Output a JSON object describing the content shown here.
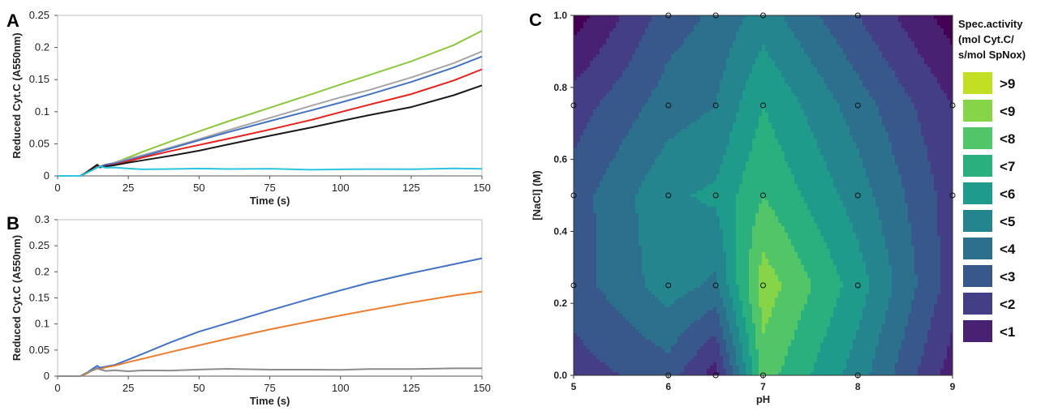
{
  "chart_data": [
    {
      "panel": "A",
      "type": "line",
      "xlabel": "Time (s)",
      "ylabel": "Reduced Cyt.C (A550nm)",
      "xlim": [
        0,
        150
      ],
      "ylim": [
        0,
        0.25
      ],
      "xticks": [
        "0",
        "25",
        "50",
        "75",
        "100",
        "125",
        "150"
      ],
      "yticks": [
        "0",
        "0.05",
        "0.1",
        "0.15",
        "0.2",
        "0.25"
      ],
      "x": [
        0,
        3,
        8,
        10,
        12,
        14,
        15,
        17,
        20,
        25,
        30,
        40,
        50,
        60,
        75,
        90,
        100,
        110,
        125,
        140,
        150
      ],
      "series": [
        {
          "color": "#8dc63f",
          "values": [
            0,
            0,
            0,
            0.004,
            0.011,
            0.017,
            0.014,
            0.018,
            0.021,
            0.029,
            0.037,
            0.053,
            0.069,
            0.085,
            0.107,
            0.128,
            0.142,
            0.156,
            0.178,
            0.204,
            0.226
          ]
        },
        {
          "color": "#a6a6a6",
          "values": [
            0,
            0,
            0,
            0.004,
            0.011,
            0.016,
            0.014,
            0.017,
            0.02,
            0.026,
            0.032,
            0.045,
            0.058,
            0.071,
            0.09,
            0.109,
            0.122,
            0.134,
            0.154,
            0.176,
            0.194
          ]
        },
        {
          "color": "#4472c4",
          "values": [
            0,
            0,
            0,
            0.004,
            0.01,
            0.016,
            0.014,
            0.017,
            0.019,
            0.025,
            0.031,
            0.043,
            0.055,
            0.067,
            0.085,
            0.103,
            0.115,
            0.127,
            0.146,
            0.168,
            0.186
          ]
        },
        {
          "color": "#e8211d",
          "values": [
            0,
            0,
            0,
            0.004,
            0.01,
            0.016,
            0.013,
            0.016,
            0.018,
            0.023,
            0.028,
            0.038,
            0.048,
            0.058,
            0.073,
            0.088,
            0.099,
            0.11,
            0.127,
            0.149,
            0.166
          ]
        },
        {
          "color": "#1a1a1a",
          "values": [
            0,
            0,
            0,
            0.005,
            0.011,
            0.018,
            0.014,
            0.015,
            0.016,
            0.02,
            0.024,
            0.032,
            0.04,
            0.049,
            0.062,
            0.075,
            0.085,
            0.095,
            0.108,
            0.126,
            0.141
          ]
        },
        {
          "color": "#2cc4e0",
          "values": [
            0,
            0,
            0,
            0.004,
            0.009,
            0.013,
            0.014,
            0.012,
            0.013,
            0.012,
            0.011,
            0.011,
            0.011,
            0.01,
            0.011,
            0.01,
            0.011,
            0.011,
            0.01,
            0.011,
            0.011
          ]
        }
      ]
    },
    {
      "panel": "B",
      "type": "line",
      "xlabel": "Time (s)",
      "ylabel": "Reduced Cyt.C (A550nm)",
      "xlim": [
        0,
        150
      ],
      "ylim": [
        0,
        0.3
      ],
      "xticks": [
        "0",
        "25",
        "50",
        "75",
        "100",
        "125",
        "150"
      ],
      "yticks": [
        "0",
        "0.05",
        "0.1",
        "0.15",
        "0.2",
        "0.25",
        "0.3"
      ],
      "x": [
        0,
        3,
        8,
        10,
        12,
        14,
        15,
        17,
        20,
        25,
        30,
        40,
        50,
        60,
        75,
        90,
        100,
        110,
        125,
        140,
        150
      ],
      "series": [
        {
          "color": "#4472c4",
          "values": [
            0,
            0,
            0,
            0.005,
            0.012,
            0.019,
            0.016,
            0.019,
            0.022,
            0.032,
            0.042,
            0.064,
            0.085,
            0.102,
            0.127,
            0.15,
            0.164,
            0.178,
            0.197,
            0.215,
            0.226
          ]
        },
        {
          "color": "#ed7d31",
          "values": [
            0,
            0,
            0,
            0.004,
            0.01,
            0.015,
            0.014,
            0.017,
            0.019,
            0.026,
            0.033,
            0.047,
            0.06,
            0.072,
            0.089,
            0.105,
            0.116,
            0.127,
            0.142,
            0.155,
            0.162
          ]
        },
        {
          "color": "#8c8c8c",
          "values": [
            0,
            0,
            0,
            0.006,
            0.011,
            0.016,
            0.012,
            0.009,
            0.011,
            0.01,
            0.012,
            0.011,
            0.012,
            0.013,
            0.012,
            0.013,
            0.013,
            0.014,
            0.013,
            0.014,
            0.015
          ]
        }
      ]
    },
    {
      "panel": "C",
      "type": "heatmap",
      "xlabel": "pH",
      "ylabel": "[NaCl] (M)",
      "xlim": [
        5,
        9
      ],
      "ylim": [
        0,
        1
      ],
      "xticks": [
        "5",
        "6",
        "7",
        "8",
        "9"
      ],
      "yticks": [
        "0.0",
        "0.2",
        "0.4",
        "0.6",
        "0.8",
        "1.0"
      ],
      "x": [
        5,
        6,
        6.5,
        7,
        8,
        9
      ],
      "y": [
        0,
        0.25,
        0.5,
        0.75,
        1.0
      ],
      "z": [
        [
          2.5,
          3.5,
          1.5,
          8.5,
          5.5,
          1.5
        ],
        [
          3.5,
          5.5,
          4.8,
          9.6,
          6.5,
          2.5
        ],
        [
          3.5,
          5.8,
          6.2,
          8.0,
          5.5,
          2.5
        ],
        [
          2.5,
          4.5,
          5.0,
          7.0,
          4.5,
          2.0
        ],
        [
          0.5,
          3.5,
          4.2,
          5.5,
          3.0,
          0.5
        ]
      ],
      "legend_title": [
        "Spec.activity",
        "(mol Cyt.C/",
        "s/mol SpNox)"
      ],
      "legend_levels": [
        ">9",
        "<9",
        "<8",
        "<7",
        "<6",
        "<5",
        "<4",
        "<3",
        "<2",
        "<1"
      ],
      "legend_colors": [
        "#c2df23",
        "#86d549",
        "#52c569",
        "#2ab07f",
        "#1e9b8a",
        "#25858e",
        "#2d708e",
        "#38588c",
        "#433e85",
        "#482173",
        "#440154"
      ],
      "samples": [
        [
          6,
          0
        ],
        [
          6.5,
          0
        ],
        [
          7,
          0
        ],
        [
          8,
          0
        ],
        [
          5,
          0.25
        ],
        [
          6,
          0.25
        ],
        [
          6.5,
          0.25
        ],
        [
          7,
          0.25
        ],
        [
          8,
          0.25
        ],
        [
          5,
          0.5
        ],
        [
          6,
          0.5
        ],
        [
          6.5,
          0.5
        ],
        [
          7,
          0.5
        ],
        [
          8,
          0.5
        ],
        [
          9,
          0.5
        ],
        [
          5,
          0.75
        ],
        [
          6,
          0.75
        ],
        [
          6.5,
          0.75
        ],
        [
          7,
          0.75
        ],
        [
          8,
          0.75
        ],
        [
          9,
          0.75
        ],
        [
          6,
          1.0
        ],
        [
          6.5,
          1.0
        ],
        [
          7,
          1.0
        ],
        [
          8,
          1.0
        ]
      ]
    }
  ],
  "panels": {
    "a": "A",
    "b": "B",
    "c": "C"
  }
}
